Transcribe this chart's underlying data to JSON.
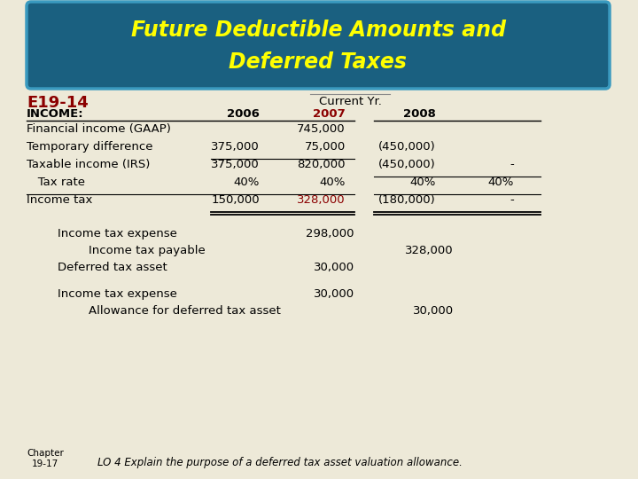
{
  "title_line1": "Future Deductible Amounts and",
  "title_line2": "Deferred Taxes",
  "title_bg_color": "#1a6080",
  "title_text_color": "#ffff00",
  "bg_color": "#ede9d8",
  "black": "#000000",
  "red": "#8b0000",
  "e19_label": "E19-14",
  "current_yr": "Current Yr.",
  "income_label": "INCOME:",
  "col_2006": "2006",
  "col_2007": "2007",
  "col_2008": "2008",
  "rows": [
    {
      "label": "Financial income (GAAP)",
      "v2006": "",
      "v2007": "745,000",
      "v2008": "",
      "v2009": "",
      "color2007": "black"
    },
    {
      "label": "Temporary difference",
      "v2006": "375,000",
      "v2007": "75,000",
      "v2008": "(450,000)",
      "v2009": "",
      "color2007": "black"
    },
    {
      "label": "Taxable income (IRS)",
      "v2006": "375,000",
      "v2007": "820,000",
      "v2008": "(450,000)",
      "v2009": "-",
      "color2007": "black"
    },
    {
      "label": "   Tax rate",
      "v2006": "40%",
      "v2007": "40%",
      "v2008": "40%",
      "v2009": "40%",
      "color2007": "black"
    },
    {
      "label": "Income tax",
      "v2006": "150,000",
      "v2007": "328,000",
      "v2008": "(180,000)",
      "v2009": "-",
      "color2007": "red"
    }
  ],
  "journal_entries": [
    {
      "label": "Income tax expense",
      "indent": 1,
      "col": "mid",
      "value": "298,000"
    },
    {
      "label": "Income tax payable",
      "indent": 2,
      "col": "right",
      "value": "328,000"
    },
    {
      "label": "Deferred tax asset",
      "indent": 1,
      "col": "mid",
      "value": "30,000"
    },
    {
      "label": "",
      "indent": 0,
      "col": "",
      "value": ""
    },
    {
      "label": "Income tax expense",
      "indent": 1,
      "col": "mid",
      "value": "30,000"
    },
    {
      "label": "Allowance for deferred tax asset",
      "indent": 2,
      "col": "right",
      "value": "30,000"
    }
  ],
  "footer_chapter": "Chapter\n19-17",
  "footer_lo": "LO 4 Explain the purpose of a deferred tax asset valuation allowance."
}
